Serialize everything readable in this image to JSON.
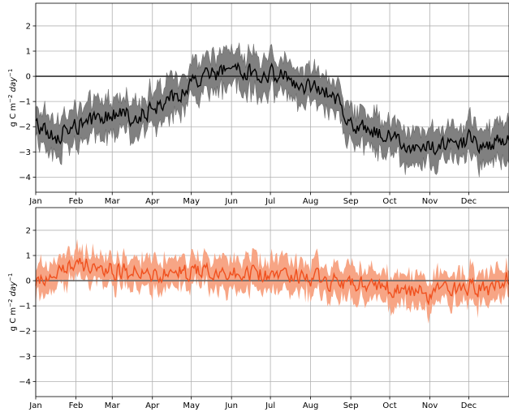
{
  "chart_data": [
    {
      "type": "line",
      "ylabel_parts": [
        "g C m",
        "−2",
        " day",
        "−1"
      ],
      "ylim": [
        -4.6,
        2.9
      ],
      "yticks": [
        2,
        1,
        0,
        -1,
        -2,
        -3,
        -4
      ],
      "ytick_labels": [
        "2",
        "1",
        "0",
        "−1",
        "−2",
        "−3",
        "−4"
      ],
      "xlim": [
        0,
        365
      ],
      "xticks": [
        0,
        31,
        59,
        90,
        120,
        151,
        181,
        212,
        243,
        273,
        304,
        334
      ],
      "xtick_labels": [
        "Jan",
        "Feb",
        "Mar",
        "Apr",
        "May",
        "Jun",
        "Jul",
        "Aug",
        "Sep",
        "Oct",
        "Nov",
        "Dec"
      ],
      "grid": true,
      "zero_line": true,
      "line_color": "#000000",
      "band_color": "#808080",
      "mean_anchors": [
        [
          0,
          -1.9
        ],
        [
          15,
          -2.4
        ],
        [
          31,
          -2.0
        ],
        [
          45,
          -1.8
        ],
        [
          59,
          -1.5
        ],
        [
          75,
          -1.6
        ],
        [
          90,
          -1.3
        ],
        [
          105,
          -0.9
        ],
        [
          120,
          -0.3
        ],
        [
          135,
          0.1
        ],
        [
          151,
          0.3
        ],
        [
          166,
          0.1
        ],
        [
          181,
          0.1
        ],
        [
          196,
          -0.1
        ],
        [
          212,
          -0.5
        ],
        [
          227,
          -0.6
        ],
        [
          243,
          -1.9
        ],
        [
          258,
          -2.2
        ],
        [
          273,
          -2.4
        ],
        [
          289,
          -2.7
        ],
        [
          304,
          -2.9
        ],
        [
          319,
          -2.7
        ],
        [
          334,
          -2.5
        ],
        [
          349,
          -2.7
        ],
        [
          365,
          -2.4
        ]
      ],
      "spread": 0.55
    },
    {
      "type": "line",
      "ylabel_parts": [
        "g C m",
        "−2",
        " day",
        "−1"
      ],
      "ylim": [
        -4.6,
        2.9
      ],
      "yticks": [
        2,
        1,
        0,
        -1,
        -2,
        -3,
        -4
      ],
      "ytick_labels": [
        "2",
        "1",
        "0",
        "−1",
        "−2",
        "−3",
        "−4"
      ],
      "xlim": [
        0,
        365
      ],
      "xticks": [
        0,
        31,
        59,
        90,
        120,
        151,
        181,
        212,
        243,
        273,
        304,
        334
      ],
      "xtick_labels": [
        "Jan",
        "Feb",
        "Mar",
        "Apr",
        "May",
        "Jun",
        "Jul",
        "Aug",
        "Sep",
        "Oct",
        "Nov",
        "Dec"
      ],
      "grid": true,
      "zero_line": true,
      "line_color": "#f0501e",
      "band_color": "#f7a585",
      "mean_anchors": [
        [
          0,
          0.1
        ],
        [
          15,
          0.3
        ],
        [
          31,
          0.6
        ],
        [
          45,
          0.6
        ],
        [
          59,
          0.4
        ],
        [
          75,
          0.3
        ],
        [
          90,
          0.3
        ],
        [
          105,
          0.3
        ],
        [
          120,
          0.3
        ],
        [
          135,
          0.4
        ],
        [
          151,
          0.4
        ],
        [
          166,
          0.3
        ],
        [
          181,
          0.2
        ],
        [
          196,
          0.2
        ],
        [
          212,
          0.1
        ],
        [
          227,
          0.0
        ],
        [
          243,
          -0.1
        ],
        [
          258,
          -0.2
        ],
        [
          273,
          -0.3
        ],
        [
          289,
          -0.4
        ],
        [
          304,
          -0.5
        ],
        [
          319,
          -0.3
        ],
        [
          334,
          -0.2
        ],
        [
          349,
          -0.3
        ],
        [
          365,
          0.1
        ]
      ],
      "spread": 0.45
    }
  ]
}
